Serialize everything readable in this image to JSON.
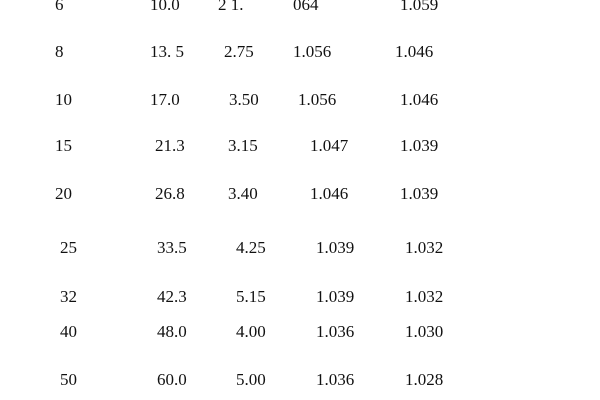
{
  "table": {
    "rows": [
      [
        "6",
        "10.0",
        "2 1.",
        "064",
        "1.059"
      ],
      [
        "8",
        "13. 5",
        "2.75",
        "1.056",
        "1.046"
      ],
      [
        "10",
        "17.0",
        "3.50",
        "1.056",
        "1.046"
      ],
      [
        "15",
        "21.3",
        "3.15",
        "1.047",
        "1.039"
      ],
      [
        "20",
        "26.8",
        "3.40",
        "1.046",
        "1.039"
      ],
      [
        "25",
        "33.5",
        "4.25",
        "1.039",
        "1.032"
      ],
      [
        "32",
        "42.3",
        "5.15",
        "1.039",
        "1.032"
      ],
      [
        "40",
        "48.0",
        "4.00",
        "1.036",
        "1.030"
      ],
      [
        "50",
        "60.0",
        "5.00",
        "1.036",
        "1.028"
      ]
    ]
  }
}
